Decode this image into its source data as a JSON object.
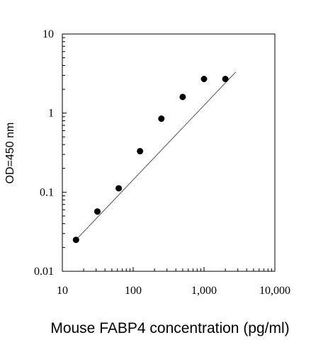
{
  "chart_data": {
    "type": "scatter",
    "title": "",
    "xlabel": "Mouse FABP4 concentration (pg/ml)",
    "ylabel": "OD=450 nm",
    "x_scale": "log",
    "y_scale": "log",
    "xlim": [
      10,
      10000
    ],
    "ylim": [
      0.01,
      10
    ],
    "x_tick_values": [
      10,
      100,
      1000,
      10000
    ],
    "x_tick_labels": [
      "10",
      "100",
      "1,000",
      "10,000"
    ],
    "y_tick_values": [
      10,
      1,
      0.1,
      0.01
    ],
    "y_tick_labels": [
      "10",
      "1",
      "0.1",
      "0.01"
    ],
    "grid": false,
    "legend": "none",
    "series": [
      {
        "kind": "points",
        "color": "#000000",
        "x": [
          15.6,
          31.25,
          62.5,
          125,
          250,
          500,
          1000,
          2000
        ],
        "y": [
          0.025,
          0.057,
          0.112,
          0.33,
          0.85,
          1.6,
          2.7,
          2.7
        ]
      },
      {
        "kind": "fit-line",
        "color": "#555555",
        "x": [
          15.6,
          2800
        ],
        "y": [
          0.025,
          3.3
        ]
      }
    ]
  }
}
